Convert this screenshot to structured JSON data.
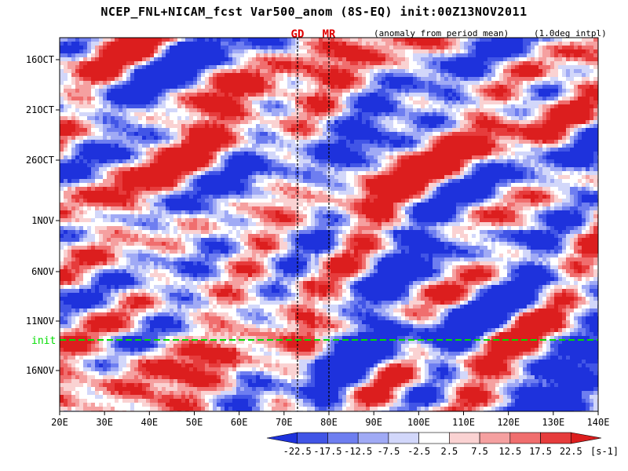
{
  "title": "NCEP_FNL+NICAM_fcst Var500_anom (8S-EQ) init:00Z13NOV2011",
  "note": "(anomaly from period mean)",
  "interpolation": "(1.0deg intpl)",
  "init_label": "init",
  "colors": {
    "negative": [
      "#1e32dc",
      "#4155e6",
      "#6e7ef0",
      "#a0aaf5",
      "#d2d7fa"
    ],
    "neutral": "#ffffff",
    "positive": [
      "#fad2d2",
      "#f5a0a0",
      "#f06e6e",
      "#e63c3c",
      "#dc1e1e"
    ],
    "init_line": "#00dd00",
    "marker_line": "#000000",
    "marker_label": "#e00000"
  },
  "chart_data": {
    "type": "heatmap",
    "xlabel": "",
    "ylabel": "",
    "x_ticks": [
      "20E",
      "30E",
      "40E",
      "50E",
      "60E",
      "70E",
      "80E",
      "90E",
      "100E",
      "110E",
      "120E",
      "130E",
      "140E"
    ],
    "xlim": [
      20,
      140
    ],
    "y_ticks": [
      "16OCT",
      "21OCT",
      "26OCT",
      "1NOV",
      "6NOV",
      "11NOV",
      "16NOV"
    ],
    "init_date": "13NOV",
    "markers": [
      {
        "label": "GD",
        "lon": 73
      },
      {
        "label": "MR",
        "lon": 80
      }
    ],
    "colorbar": {
      "levels": [
        "-22.5",
        "-17.5",
        "-12.5",
        "-7.5",
        "-2.5",
        "2.5",
        "7.5",
        "12.5",
        "17.5",
        "22.5"
      ],
      "unit": "[s-1]"
    }
  }
}
